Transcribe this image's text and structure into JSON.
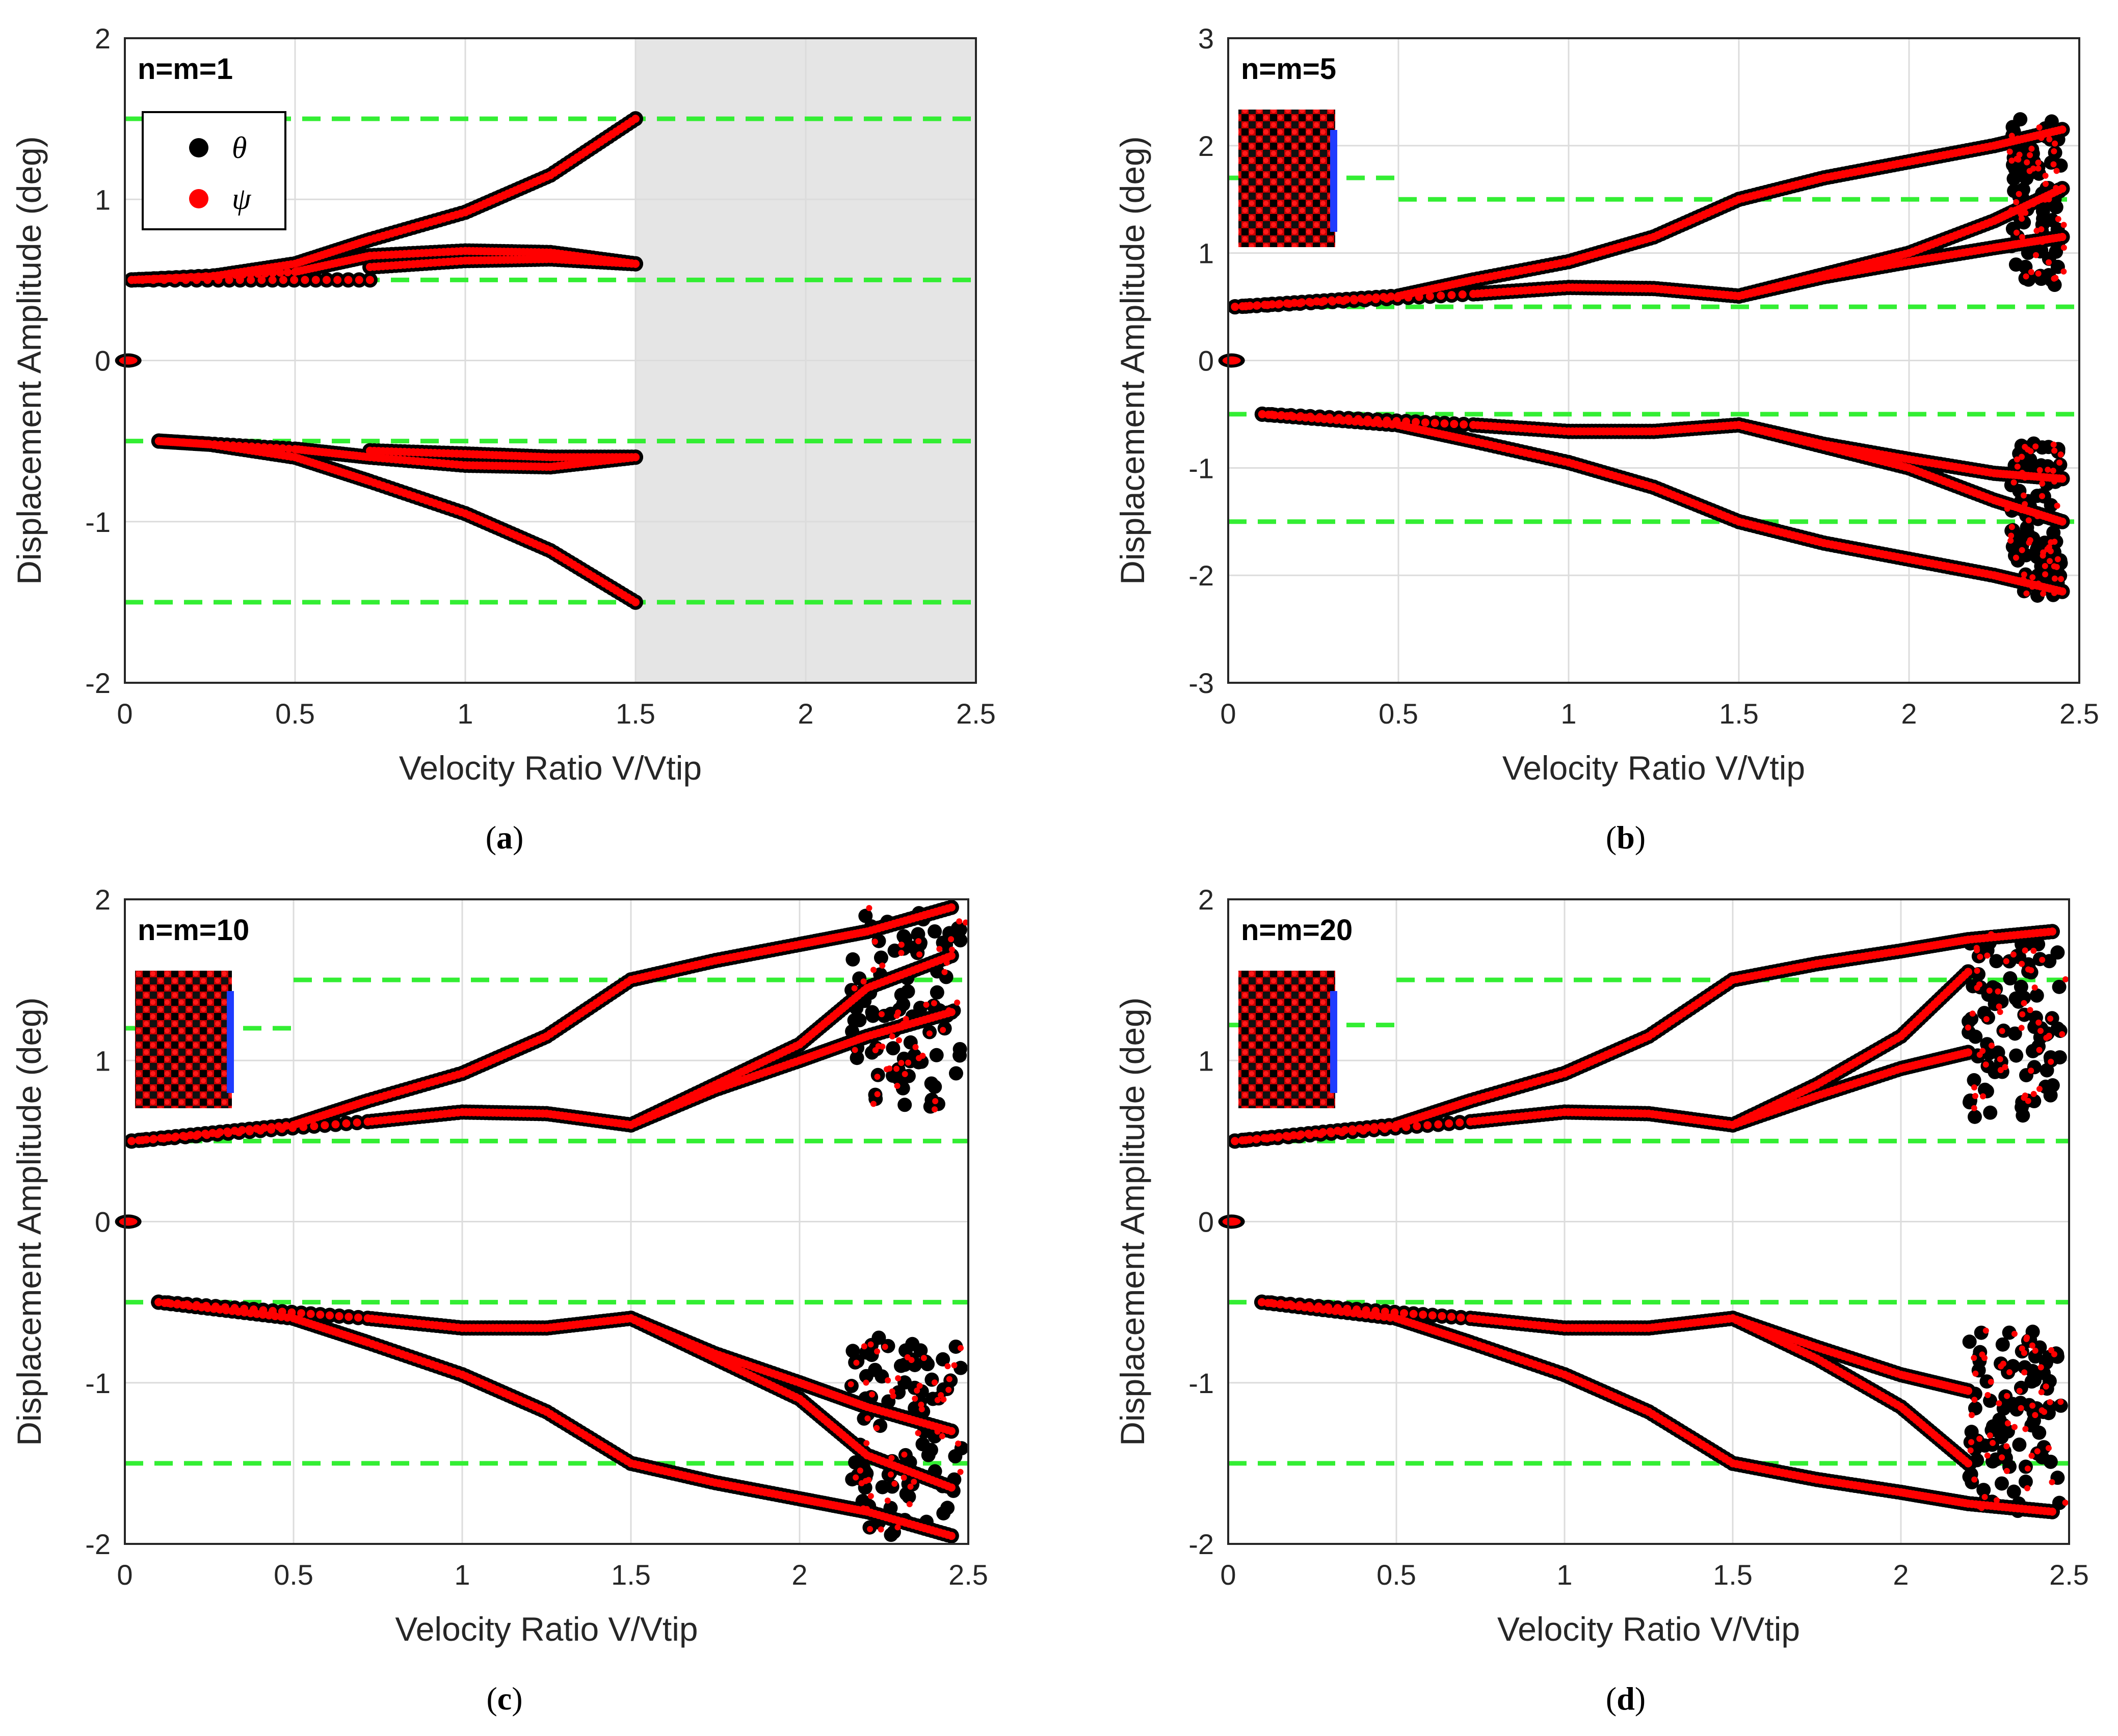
{
  "figure": {
    "legend": [
      {
        "symbol": "theta",
        "label": "θ",
        "color": "#000000"
      },
      {
        "symbol": "psi",
        "label": "ψ",
        "color": "#ff0000"
      }
    ],
    "colors": {
      "theta": "#000000",
      "psi": "#ff0000",
      "limit_lines": "#33ee33",
      "shaded": "#e5e5e5",
      "grid": "#dcdcdc"
    }
  },
  "chart_data": [
    {
      "type": "scatter",
      "panel": "a",
      "caption_letter": "a",
      "tag": "n=m=1",
      "xlabel": "Velocity Ratio V/Vtip",
      "ylabel": "Displacement Amplitude (deg)",
      "xlim": [
        0,
        2.5
      ],
      "ylim": [
        -2,
        2
      ],
      "xticks": [
        "0",
        "0.5",
        "1",
        "1.5",
        "2",
        "2.5"
      ],
      "yticks": [
        "-2",
        "-1",
        "0",
        "1",
        "2"
      ],
      "grid": true,
      "legend_position": "top-left",
      "has_legend": true,
      "shaded_region": [
        1.5,
        2.5
      ],
      "limit_lines": [
        {
          "y": 1.5,
          "x": [
            0,
            2.5
          ]
        },
        {
          "y": 0.5,
          "x": [
            0,
            2.5
          ]
        },
        {
          "y": -0.5,
          "x": [
            0,
            2.5
          ]
        },
        {
          "y": -1.5,
          "x": [
            0,
            2.5
          ]
        }
      ],
      "zero_point": [
        0.01,
        0
      ],
      "branches": [
        {
          "x": [
            0.02,
            0.25,
            0.5,
            0.72,
            1.0,
            1.25,
            1.5
          ],
          "y": [
            0.5,
            0.52,
            0.6,
            0.75,
            0.92,
            1.15,
            1.5
          ]
        },
        {
          "x": [
            0.02,
            0.5,
            0.72,
            1.0,
            1.25,
            1.5
          ],
          "y": [
            0.5,
            0.55,
            0.65,
            0.68,
            0.67,
            0.6
          ]
        },
        {
          "x": [
            0.72,
            1.0,
            1.25,
            1.5
          ],
          "y": [
            0.58,
            0.62,
            0.63,
            0.6
          ]
        },
        {
          "x": [
            0.02,
            0.72
          ],
          "y": [
            0.5,
            0.5
          ]
        },
        {
          "x": [
            0.1,
            0.25,
            0.5,
            0.72,
            1.0,
            1.25,
            1.5
          ],
          "y": [
            -0.5,
            -0.52,
            -0.6,
            -0.75,
            -0.95,
            -1.18,
            -1.5
          ]
        },
        {
          "x": [
            0.1,
            0.5,
            0.72,
            1.0,
            1.25,
            1.5
          ],
          "y": [
            -0.5,
            -0.55,
            -0.6,
            -0.65,
            -0.66,
            -0.6
          ]
        },
        {
          "x": [
            0.72,
            1.0,
            1.25,
            1.5
          ],
          "y": [
            -0.56,
            -0.58,
            -0.6,
            -0.6
          ]
        }
      ]
    },
    {
      "type": "scatter",
      "panel": "b",
      "caption_letter": "b",
      "tag": "n=m=5",
      "xlabel": "Velocity Ratio V/Vtip",
      "ylabel": "Displacement Amplitude (deg)",
      "xlim": [
        0,
        2.5
      ],
      "ylim": [
        -3,
        3
      ],
      "xticks": [
        "0",
        "0.5",
        "1",
        "1.5",
        "2",
        "2.5"
      ],
      "yticks": [
        "-3",
        "-2",
        "-1",
        "0",
        "1",
        "2",
        "3"
      ],
      "grid": true,
      "has_legend": false,
      "limit_lines": [
        {
          "y": 1.5,
          "x": [
            0.5,
            2.5
          ]
        },
        {
          "y": 1.7,
          "x": [
            0.0,
            0.5
          ]
        },
        {
          "y": 0.5,
          "x": [
            0,
            2.5
          ]
        },
        {
          "y": -0.5,
          "x": [
            0,
            2.5
          ]
        },
        {
          "y": -1.5,
          "x": [
            0,
            2.5
          ]
        }
      ],
      "zero_point": [
        0.01,
        0
      ],
      "branches": [
        {
          "x": [
            0.02,
            0.5,
            0.72,
            1.0,
            1.25,
            1.5,
            1.75,
            2.0,
            2.25,
            2.45
          ],
          "y": [
            0.5,
            0.6,
            0.75,
            0.92,
            1.15,
            1.5,
            1.7,
            1.85,
            2.0,
            2.15
          ]
        },
        {
          "x": [
            0.02,
            0.72,
            1.0,
            1.25,
            1.5,
            1.75,
            2.0,
            2.25,
            2.45
          ],
          "y": [
            0.5,
            0.62,
            0.68,
            0.67,
            0.6,
            0.8,
            1.0,
            1.3,
            1.6
          ]
        },
        {
          "x": [
            1.5,
            1.75,
            2.0,
            2.25,
            2.45
          ],
          "y": [
            0.6,
            0.78,
            0.92,
            1.05,
            1.15
          ]
        },
        {
          "x": [
            0.1,
            0.5,
            0.72,
            1.0,
            1.25,
            1.5,
            1.75,
            2.0,
            2.25,
            2.45
          ],
          "y": [
            -0.5,
            -0.6,
            -0.75,
            -0.95,
            -1.18,
            -1.5,
            -1.7,
            -1.85,
            -2.0,
            -2.15
          ]
        },
        {
          "x": [
            0.1,
            0.72,
            1.0,
            1.25,
            1.5,
            1.75,
            2.0,
            2.25,
            2.45
          ],
          "y": [
            -0.5,
            -0.6,
            -0.66,
            -0.66,
            -0.6,
            -0.8,
            -1.0,
            -1.3,
            -1.5
          ]
        },
        {
          "x": [
            1.5,
            1.75,
            2.0,
            2.25,
            2.45
          ],
          "y": [
            -0.6,
            -0.78,
            -0.92,
            -1.05,
            -1.1
          ]
        }
      ],
      "scatter_clusters": [
        {
          "x": [
            2.3,
            2.45
          ],
          "y": [
            0.7,
            2.25
          ]
        },
        {
          "x": [
            2.3,
            2.45
          ],
          "y": [
            -2.2,
            -0.75
          ]
        }
      ]
    },
    {
      "type": "scatter",
      "panel": "c",
      "caption_letter": "c",
      "tag": "n=m=10",
      "xlabel": "Velocity Ratio V/Vtip",
      "ylabel": "Displacement Amplitude (deg)",
      "xlim": [
        0,
        2.5
      ],
      "ylim": [
        -2,
        2
      ],
      "xticks": [
        "0",
        "0.5",
        "1",
        "1.5",
        "2",
        "2.5"
      ],
      "yticks": [
        "-2",
        "-1",
        "0",
        "1",
        "2"
      ],
      "grid": true,
      "has_legend": false,
      "limit_lines": [
        {
          "y": 1.5,
          "x": [
            0.5,
            2.5
          ]
        },
        {
          "y": 1.2,
          "x": [
            0.0,
            0.5
          ]
        },
        {
          "y": 0.5,
          "x": [
            0,
            2.5
          ]
        },
        {
          "y": -0.5,
          "x": [
            0,
            2.5
          ]
        },
        {
          "y": -1.5,
          "x": [
            0,
            2.5
          ]
        }
      ],
      "zero_point": [
        0.01,
        0
      ],
      "branches": [
        {
          "x": [
            0.02,
            0.5,
            0.72,
            1.0,
            1.25,
            1.5,
            1.75,
            2.0,
            2.2,
            2.45
          ],
          "y": [
            0.5,
            0.6,
            0.75,
            0.92,
            1.15,
            1.5,
            1.62,
            1.72,
            1.8,
            1.95
          ]
        },
        {
          "x": [
            0.02,
            0.72,
            1.0,
            1.25,
            1.5,
            1.75,
            2.0,
            2.2,
            2.45
          ],
          "y": [
            0.5,
            0.62,
            0.68,
            0.67,
            0.6,
            0.85,
            1.1,
            1.45,
            1.65
          ]
        },
        {
          "x": [
            1.5,
            1.75,
            2.0,
            2.2,
            2.45
          ],
          "y": [
            0.6,
            0.82,
            1.0,
            1.15,
            1.3
          ]
        },
        {
          "x": [
            0.1,
            0.5,
            0.72,
            1.0,
            1.25,
            1.5,
            1.75,
            2.0,
            2.2,
            2.45
          ],
          "y": [
            -0.5,
            -0.6,
            -0.75,
            -0.95,
            -1.18,
            -1.5,
            -1.62,
            -1.72,
            -1.8,
            -1.95
          ]
        },
        {
          "x": [
            0.1,
            0.72,
            1.0,
            1.25,
            1.5,
            1.75,
            2.0,
            2.2,
            2.45
          ],
          "y": [
            -0.5,
            -0.6,
            -0.66,
            -0.66,
            -0.6,
            -0.85,
            -1.1,
            -1.45,
            -1.65
          ]
        },
        {
          "x": [
            1.5,
            1.75,
            2.0,
            2.2,
            2.45
          ],
          "y": [
            -0.6,
            -0.82,
            -1.0,
            -1.15,
            -1.3
          ]
        }
      ],
      "scatter_clusters": [
        {
          "x": [
            2.15,
            2.48
          ],
          "y": [
            0.7,
            1.95
          ]
        },
        {
          "x": [
            2.15,
            2.48
          ],
          "y": [
            -1.95,
            -0.7
          ]
        }
      ]
    },
    {
      "type": "scatter",
      "panel": "d",
      "caption_letter": "d",
      "tag": "n=m=20",
      "xlabel": "Velocity Ratio V/Vtip",
      "ylabel": "Displacement Amplitude (deg)",
      "xlim": [
        0,
        2.5
      ],
      "ylim": [
        -2,
        2
      ],
      "xticks": [
        "0",
        "0.5",
        "1",
        "1.5",
        "2",
        "2.5"
      ],
      "yticks": [
        "-2",
        "-1",
        "0",
        "1",
        "2"
      ],
      "grid": true,
      "has_legend": false,
      "limit_lines": [
        {
          "y": 1.5,
          "x": [
            0.5,
            2.5
          ]
        },
        {
          "y": 1.22,
          "x": [
            0.0,
            0.5
          ]
        },
        {
          "y": 0.5,
          "x": [
            0,
            2.5
          ]
        },
        {
          "y": -0.5,
          "x": [
            0,
            2.5
          ]
        },
        {
          "y": -1.5,
          "x": [
            0,
            2.5
          ]
        }
      ],
      "zero_point": [
        0.01,
        0
      ],
      "branches": [
        {
          "x": [
            0.02,
            0.5,
            0.72,
            1.0,
            1.25,
            1.5,
            1.75,
            2.0,
            2.2,
            2.45
          ],
          "y": [
            0.5,
            0.6,
            0.75,
            0.92,
            1.15,
            1.5,
            1.6,
            1.68,
            1.75,
            1.8
          ]
        },
        {
          "x": [
            0.02,
            0.72,
            1.0,
            1.25,
            1.5,
            1.75,
            2.0,
            2.2
          ],
          "y": [
            0.5,
            0.62,
            0.68,
            0.67,
            0.6,
            0.85,
            1.15,
            1.55
          ]
        },
        {
          "x": [
            1.5,
            1.75,
            2.0,
            2.2
          ],
          "y": [
            0.6,
            0.78,
            0.95,
            1.05
          ]
        },
        {
          "x": [
            0.1,
            0.5,
            0.72,
            1.0,
            1.25,
            1.5,
            1.75,
            2.0,
            2.2,
            2.45
          ],
          "y": [
            -0.5,
            -0.6,
            -0.75,
            -0.95,
            -1.18,
            -1.5,
            -1.6,
            -1.68,
            -1.75,
            -1.8
          ]
        },
        {
          "x": [
            0.1,
            0.72,
            1.0,
            1.25,
            1.5,
            1.75,
            2.0,
            2.2
          ],
          "y": [
            -0.5,
            -0.6,
            -0.66,
            -0.66,
            -0.6,
            -0.85,
            -1.15,
            -1.5
          ]
        },
        {
          "x": [
            1.5,
            1.75,
            2.0,
            2.2
          ],
          "y": [
            -0.6,
            -0.78,
            -0.95,
            -1.05
          ]
        }
      ],
      "scatter_clusters": [
        {
          "x": [
            2.2,
            2.48
          ],
          "y": [
            0.65,
            1.8
          ]
        },
        {
          "x": [
            2.2,
            2.48
          ],
          "y": [
            -1.85,
            -0.65
          ]
        }
      ]
    }
  ]
}
